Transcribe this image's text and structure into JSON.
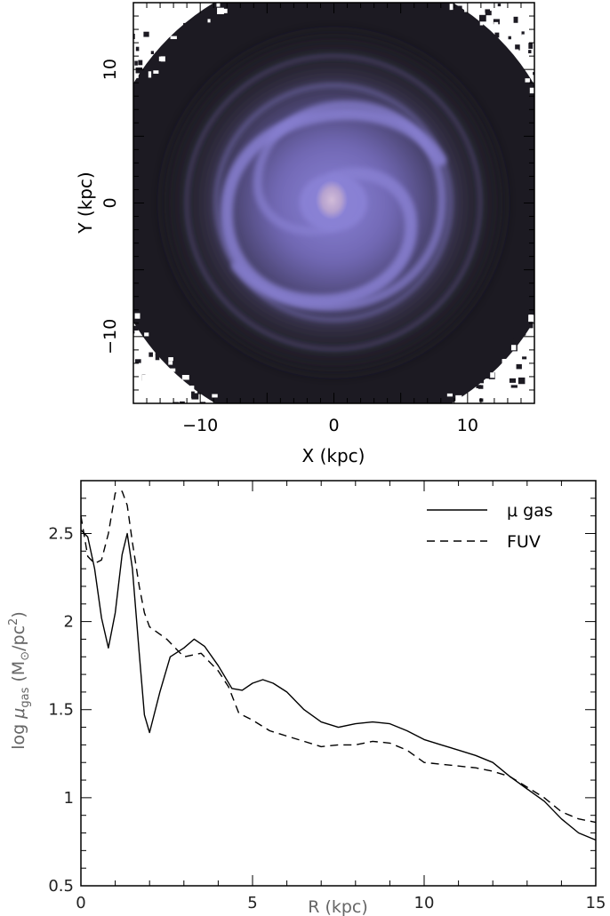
{
  "chart_data": [
    {
      "type": "heatmap",
      "xlabel": "X (kpc)",
      "ylabel": "Y (kpc)",
      "xlim": [
        -15,
        15
      ],
      "ylim": [
        -15,
        15
      ],
      "xticks": [
        "−10",
        "0",
        "10"
      ],
      "yticks": [
        "−10",
        "0",
        "10"
      ],
      "colors": {
        "background": "#1c1a22",
        "gas": "#8a82d6",
        "core": "#c9b4d6"
      },
      "description_values": {
        "xtick_values": [
          -10,
          0,
          10
        ],
        "ytick_values": [
          -10,
          0,
          10
        ]
      }
    },
    {
      "type": "line",
      "xlabel": "R (kpc)",
      "ylabel_prefix": "log ",
      "ylabel_symbol": "μ",
      "ylabel_sub": "gas",
      "ylabel_units_open": " (M",
      "ylabel_sun": "⊙",
      "ylabel_units_mid": "/pc",
      "ylabel_sup": "2",
      "ylabel_units_close": ")",
      "xlim": [
        0,
        15
      ],
      "ylim": [
        0.5,
        2.8
      ],
      "xticks": [
        "0",
        "5",
        "10",
        "15"
      ],
      "xtick_values": [
        0,
        5,
        10,
        15
      ],
      "yticks": [
        "0.5",
        "1",
        "1.5",
        "2",
        "2.5"
      ],
      "ytick_values": [
        0.5,
        1,
        1.5,
        2,
        2.5
      ],
      "legend_position": "top-right",
      "series": [
        {
          "name": "μ gas",
          "style": "solid",
          "x": [
            0.0,
            0.2,
            0.4,
            0.6,
            0.8,
            1.0,
            1.2,
            1.35,
            1.5,
            1.7,
            1.85,
            2.0,
            2.3,
            2.6,
            3.0,
            3.3,
            3.6,
            4.0,
            4.4,
            4.7,
            5.0,
            5.3,
            5.6,
            6.0,
            6.5,
            7.0,
            7.5,
            8.0,
            8.5,
            9.0,
            9.5,
            10.0,
            10.5,
            11.0,
            11.5,
            12.0,
            12.5,
            13.0,
            13.5,
            14.0,
            14.5,
            15.0
          ],
          "y": [
            2.52,
            2.48,
            2.3,
            2.02,
            1.85,
            2.05,
            2.38,
            2.5,
            2.3,
            1.82,
            1.47,
            1.37,
            1.6,
            1.8,
            1.85,
            1.9,
            1.86,
            1.75,
            1.62,
            1.61,
            1.65,
            1.67,
            1.65,
            1.6,
            1.5,
            1.43,
            1.4,
            1.42,
            1.43,
            1.42,
            1.38,
            1.33,
            1.3,
            1.27,
            1.24,
            1.2,
            1.12,
            1.05,
            0.98,
            0.88,
            0.8,
            0.76
          ]
        },
        {
          "name": "FUV",
          "style": "dashed",
          "x": [
            0.0,
            0.2,
            0.4,
            0.6,
            0.8,
            1.0,
            1.2,
            1.35,
            1.5,
            1.7,
            1.85,
            2.0,
            2.5,
            3.0,
            3.5,
            4.0,
            4.3,
            4.6,
            5.0,
            5.5,
            6.0,
            6.5,
            7.0,
            7.5,
            8.0,
            8.5,
            9.0,
            9.5,
            10.0,
            10.5,
            11.0,
            11.5,
            12.0,
            12.5,
            13.0,
            13.5,
            14.0,
            14.5,
            15.0
          ],
          "y": [
            2.6,
            2.37,
            2.33,
            2.35,
            2.5,
            2.73,
            2.74,
            2.66,
            2.45,
            2.2,
            2.05,
            1.97,
            1.9,
            1.8,
            1.82,
            1.72,
            1.63,
            1.48,
            1.44,
            1.38,
            1.35,
            1.32,
            1.29,
            1.3,
            1.3,
            1.32,
            1.31,
            1.27,
            1.2,
            1.19,
            1.18,
            1.17,
            1.15,
            1.12,
            1.06,
            1.0,
            0.92,
            0.88,
            0.86
          ]
        }
      ]
    }
  ]
}
